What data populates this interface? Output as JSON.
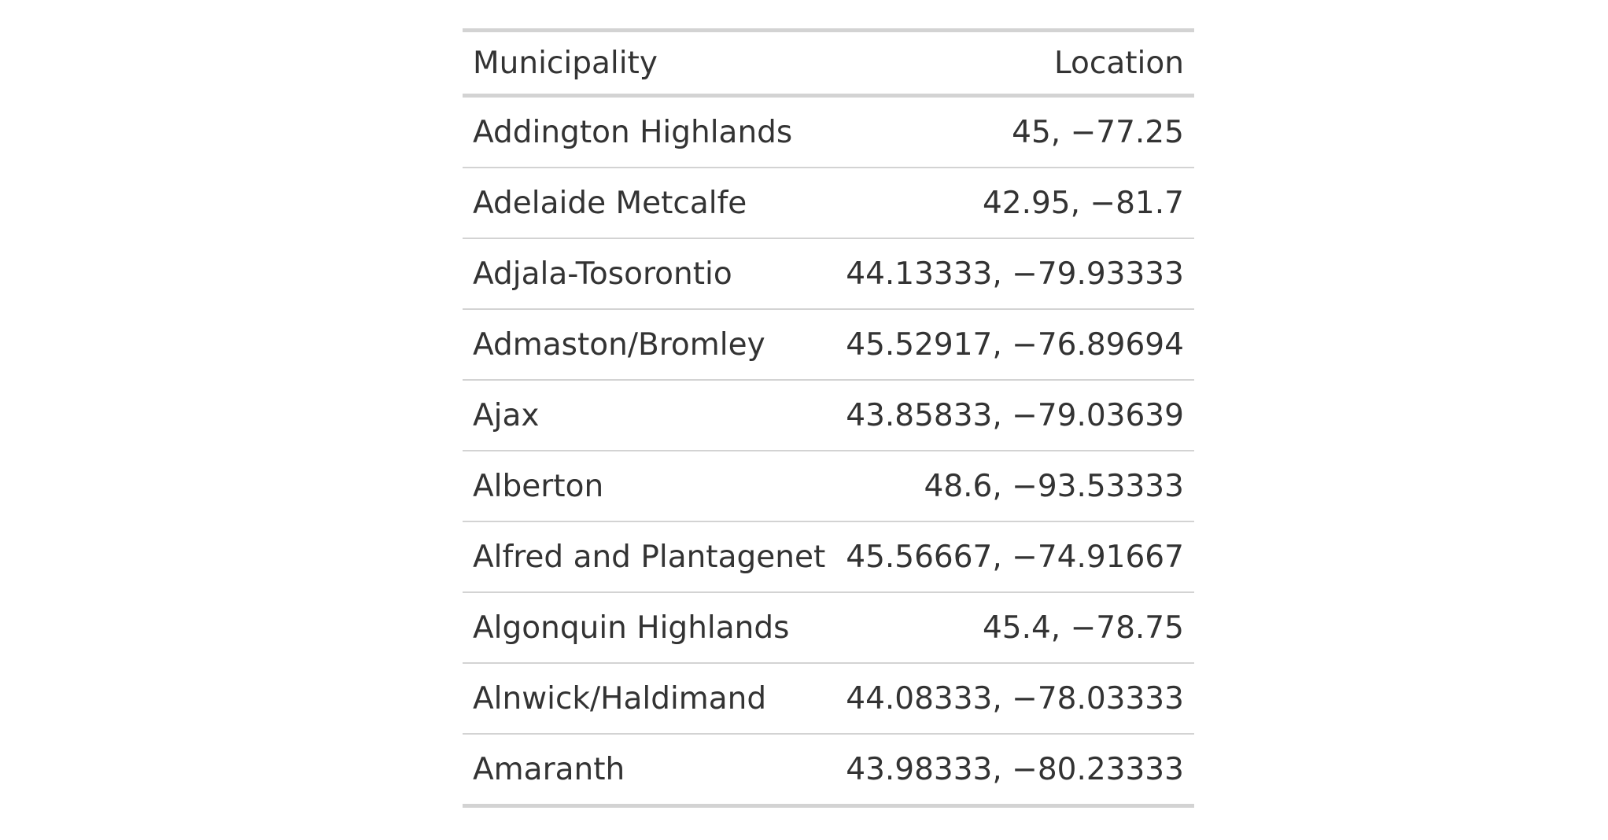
{
  "table": {
    "headers": {
      "municipality": "Municipality",
      "location": "Location"
    },
    "rows": [
      {
        "municipality": "Addington Highlands",
        "location": "45, −77.25"
      },
      {
        "municipality": "Adelaide Metcalfe",
        "location": "42.95, −81.7"
      },
      {
        "municipality": "Adjala-Tosorontio",
        "location": "44.13333, −79.93333"
      },
      {
        "municipality": "Admaston/Bromley",
        "location": "45.52917, −76.89694"
      },
      {
        "municipality": "Ajax",
        "location": "43.85833, −79.03639"
      },
      {
        "municipality": "Alberton",
        "location": "48.6, −93.53333"
      },
      {
        "municipality": "Alfred and Plantagenet",
        "location": "45.56667, −74.91667"
      },
      {
        "municipality": "Algonquin Highlands",
        "location": "45.4, −78.75"
      },
      {
        "municipality": "Alnwick/Haldimand",
        "location": "44.08333, −78.03333"
      },
      {
        "municipality": "Amaranth",
        "location": "43.98333, −80.23333"
      }
    ]
  },
  "colors": {
    "text": "#333333",
    "rule": "#d3d3d3",
    "background": "#ffffff"
  }
}
